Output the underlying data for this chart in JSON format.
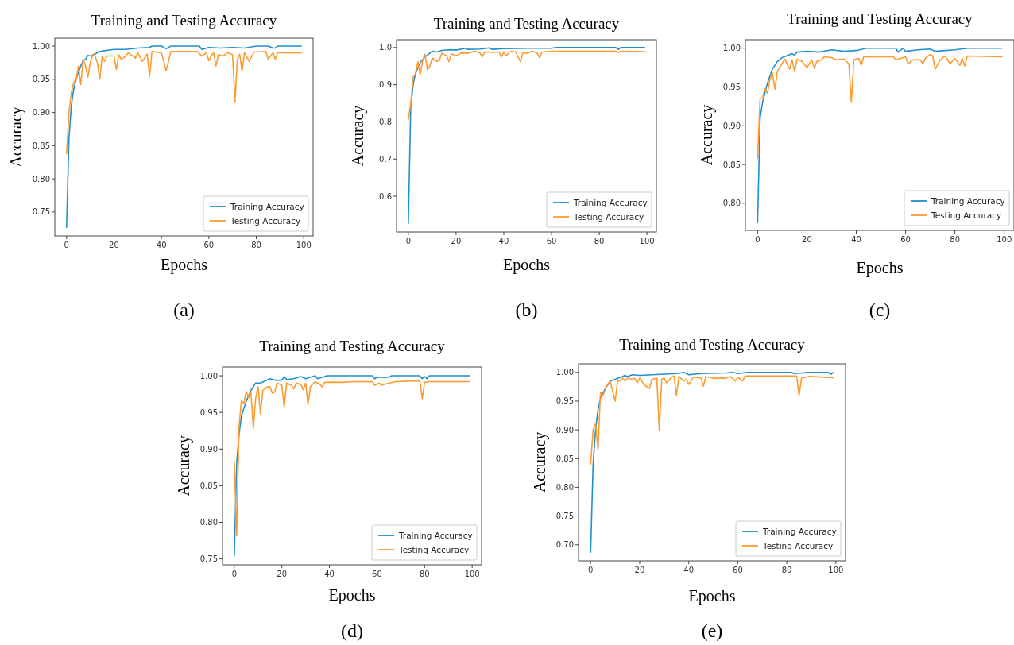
{
  "chart_data": [
    {
      "type": "line",
      "title": "Training and Testing Accuracy",
      "xlabel": "Epochs",
      "ylabel": "Accuracy",
      "annotations": [
        "(a)"
      ],
      "xlim": [
        -4.95,
        103.95
      ],
      "xticks": [
        0,
        20,
        40,
        60,
        80,
        100
      ],
      "ylim": [
        0.714,
        1.012
      ],
      "yticks": [
        {
          "value": 0.75,
          "label": "0.75"
        },
        {
          "value": 0.8,
          "label": "0.80"
        },
        {
          "value": 0.85,
          "label": "0.85"
        },
        {
          "value": 0.9,
          "label": "0.90"
        },
        {
          "value": 0.95,
          "label": "0.95"
        },
        {
          "value": 1.0,
          "label": "1.00"
        }
      ],
      "legend": "bottom right",
      "grid": false,
      "series": [
        {
          "name": "Training Accuracy",
          "color": "#1f8fd0",
          "x": [
            0,
            1,
            2,
            3,
            4,
            5,
            6,
            7,
            8,
            9,
            10,
            12,
            14,
            16,
            18,
            20,
            25,
            30,
            35,
            36,
            40,
            42,
            44,
            56,
            57,
            60,
            65,
            70,
            75,
            80,
            85,
            87,
            88,
            89,
            99
          ],
          "values": [
            0.727,
            0.86,
            0.91,
            0.935,
            0.95,
            0.96,
            0.97,
            0.978,
            0.98,
            0.986,
            0.985,
            0.988,
            0.992,
            0.993,
            0.994,
            0.995,
            0.995,
            0.997,
            0.998,
            1.0,
            1.0,
            0.996,
            1.0,
            1.0,
            0.995,
            0.998,
            0.997,
            0.998,
            0.997,
            1.0,
            1.0,
            0.997,
            0.997,
            1.0,
            1.0
          ]
        },
        {
          "name": "Testing Accuracy",
          "color": "#ff9a2e",
          "x": [
            0,
            1,
            2,
            3,
            4,
            5,
            6,
            7,
            8,
            9,
            10,
            11,
            12,
            13,
            14,
            15,
            16,
            17,
            20,
            21,
            22,
            23,
            25,
            26,
            28,
            29,
            30,
            32,
            34,
            35,
            36,
            40,
            42,
            44,
            55,
            57,
            59,
            60,
            61,
            62,
            63,
            64,
            66,
            68,
            70,
            71,
            72,
            73,
            74,
            75,
            77,
            79,
            84,
            85,
            87,
            88,
            89,
            99
          ],
          "values": [
            0.838,
            0.9,
            0.93,
            0.945,
            0.95,
            0.97,
            0.942,
            0.98,
            0.97,
            0.953,
            0.975,
            0.987,
            0.985,
            0.975,
            0.95,
            0.985,
            0.977,
            0.985,
            0.985,
            0.965,
            0.987,
            0.98,
            0.985,
            0.99,
            0.985,
            0.982,
            0.99,
            0.977,
            0.988,
            0.954,
            0.992,
            0.99,
            0.963,
            0.992,
            0.992,
            0.985,
            0.99,
            0.978,
            0.985,
            0.99,
            0.97,
            0.987,
            0.985,
            0.99,
            0.987,
            0.915,
            0.98,
            0.988,
            0.962,
            0.99,
            0.977,
            0.991,
            0.992,
            0.98,
            0.99,
            0.98,
            0.99,
            0.99
          ]
        }
      ]
    },
    {
      "type": "line",
      "title": "Training and Testing Accuracy",
      "xlabel": "Epochs",
      "ylabel": "Accuracy",
      "annotations": [
        "(b)"
      ],
      "xlim": [
        -4.95,
        103.95
      ],
      "xticks": [
        0,
        20,
        40,
        60,
        80,
        100
      ],
      "ylim": [
        0.504,
        1.021
      ],
      "yticks": [
        0.6,
        0.7,
        0.8,
        0.9,
        {
          "value": 1.0,
          "label": "1.0"
        }
      ],
      "legend": "bottom right",
      "grid": false,
      "series": [
        {
          "name": "Training Accuracy",
          "color": "#1f8fd0",
          "x": [
            0,
            1,
            2,
            3,
            5,
            7,
            9,
            10,
            12,
            14,
            18,
            20,
            24,
            25,
            30,
            34,
            35,
            40,
            50,
            60,
            62,
            87,
            88,
            89,
            99
          ],
          "values": [
            0.527,
            0.84,
            0.9,
            0.93,
            0.96,
            0.975,
            0.985,
            0.99,
            0.988,
            0.992,
            0.994,
            0.993,
            0.998,
            0.995,
            0.996,
            0.999,
            0.995,
            0.997,
            0.998,
            0.998,
            1.0,
            1.0,
            0.995,
            1.0,
            1.0
          ]
        },
        {
          "name": "Testing Accuracy",
          "color": "#ff9a2e",
          "x": [
            0,
            1,
            2,
            3,
            4,
            5,
            6,
            7,
            8,
            9,
            10,
            12,
            13,
            14,
            16,
            17,
            18,
            20,
            22,
            25,
            28,
            30,
            31,
            32,
            35,
            38,
            39,
            40,
            41,
            43,
            45,
            47,
            48,
            50,
            52,
            54,
            55,
            56,
            60,
            87,
            88,
            89,
            99
          ],
          "values": [
            0.806,
            0.85,
            0.92,
            0.93,
            0.962,
            0.926,
            0.965,
            0.982,
            0.94,
            0.95,
            0.972,
            0.963,
            0.965,
            0.985,
            0.978,
            0.962,
            0.983,
            0.978,
            0.985,
            0.985,
            0.99,
            0.985,
            0.975,
            0.988,
            0.987,
            0.988,
            0.975,
            0.988,
            0.978,
            0.99,
            0.988,
            0.962,
            0.986,
            0.985,
            0.99,
            0.985,
            0.972,
            0.988,
            0.99,
            0.99,
            0.986,
            0.99,
            0.989
          ]
        }
      ]
    },
    {
      "type": "line",
      "title": "Training and Testing Accuracy",
      "xlabel": "Epochs",
      "ylabel": "Accuracy",
      "annotations": [
        "(c)"
      ],
      "xlim": [
        -4.95,
        103.95
      ],
      "xticks": [
        0,
        20,
        40,
        60,
        80,
        100
      ],
      "ylim": [
        0.765,
        1.011
      ],
      "yticks": [
        {
          "value": 0.8,
          "label": "0.80"
        },
        {
          "value": 0.85,
          "label": "0.85"
        },
        {
          "value": 0.9,
          "label": "0.90"
        },
        {
          "value": 0.95,
          "label": "0.95"
        },
        {
          "value": 1.0,
          "label": "1.00"
        }
      ],
      "legend": "bottom right",
      "grid": false,
      "series": [
        {
          "name": "Training Accuracy",
          "color": "#1f8fd0",
          "x": [
            0,
            1,
            2,
            4,
            6,
            8,
            10,
            14,
            15,
            16,
            20,
            25,
            30,
            35,
            40,
            44,
            56,
            57,
            59,
            60,
            65,
            70,
            72,
            80,
            85,
            99
          ],
          "values": [
            0.775,
            0.91,
            0.93,
            0.955,
            0.973,
            0.983,
            0.988,
            0.993,
            0.991,
            0.995,
            0.996,
            0.995,
            0.998,
            0.996,
            0.997,
            1.0,
            1.0,
            0.995,
            1.0,
            0.996,
            0.998,
            0.999,
            0.996,
            0.998,
            1.0,
            1.0
          ]
        },
        {
          "name": "Testing Accuracy",
          "color": "#ff9a2e",
          "x": [
            0,
            1,
            2,
            3,
            4,
            5,
            6,
            7,
            8,
            11,
            13,
            14,
            15,
            16,
            18,
            20,
            22,
            23,
            24,
            26,
            27,
            30,
            32,
            35,
            37,
            38,
            39,
            41,
            42,
            43,
            55,
            56,
            60,
            61,
            63,
            66,
            67,
            68,
            70,
            71,
            72,
            74,
            76,
            78,
            80,
            82,
            83,
            84,
            85,
            99
          ],
          "values": [
            0.858,
            0.935,
            0.936,
            0.948,
            0.942,
            0.96,
            0.968,
            0.947,
            0.97,
            0.986,
            0.973,
            0.985,
            0.97,
            0.986,
            0.983,
            0.975,
            0.985,
            0.974,
            0.983,
            0.985,
            0.989,
            0.988,
            0.985,
            0.986,
            0.98,
            0.93,
            0.985,
            0.987,
            0.978,
            0.989,
            0.989,
            0.985,
            0.989,
            0.98,
            0.985,
            0.985,
            0.98,
            0.987,
            0.992,
            0.99,
            0.973,
            0.985,
            0.99,
            0.98,
            0.987,
            0.978,
            0.987,
            0.977,
            0.99,
            0.989
          ]
        }
      ]
    },
    {
      "type": "line",
      "title": "Training and Testing Accuracy",
      "xlabel": "Epochs",
      "ylabel": "Accuracy",
      "annotations": [
        "(d)"
      ],
      "xlim": [
        -4.95,
        103.95
      ],
      "xticks": [
        0,
        20,
        40,
        60,
        80,
        100
      ],
      "ylim": [
        0.742,
        1.012
      ],
      "yticks": [
        {
          "value": 0.75,
          "label": "0.75"
        },
        {
          "value": 0.8,
          "label": "0.80"
        },
        {
          "value": 0.85,
          "label": "0.85"
        },
        {
          "value": 0.9,
          "label": "0.90"
        },
        {
          "value": 0.95,
          "label": "0.95"
        },
        {
          "value": 1.0,
          "label": "1.00"
        }
      ],
      "legend": "bottom right",
      "grid": false,
      "series": [
        {
          "name": "Training Accuracy",
          "color": "#1f8fd0",
          "x": [
            0,
            1,
            2,
            3,
            5,
            7,
            9,
            11,
            13,
            15,
            17,
            20,
            21,
            22,
            25,
            28,
            30,
            34,
            35,
            39,
            58,
            59,
            60,
            65,
            66,
            78,
            79,
            80,
            81,
            82,
            99
          ],
          "values": [
            0.754,
            0.88,
            0.92,
            0.945,
            0.965,
            0.98,
            0.99,
            0.99,
            0.993,
            0.996,
            0.994,
            0.994,
            0.999,
            0.995,
            0.996,
            0.999,
            0.996,
            1.0,
            0.996,
            1.0,
            1.0,
            0.996,
            0.998,
            0.998,
            1.0,
            1.0,
            0.996,
            0.999,
            0.996,
            1.0,
            1.0
          ]
        },
        {
          "name": "Testing Accuracy",
          "color": "#ff9a2e",
          "x": [
            0,
            1,
            2,
            3,
            4,
            5,
            6,
            7,
            8,
            9,
            10,
            11,
            12,
            14,
            15,
            16,
            17,
            18,
            20,
            21,
            22,
            24,
            25,
            26,
            28,
            29,
            30,
            31,
            32,
            34,
            36,
            37,
            38,
            45,
            50,
            58,
            59,
            61,
            62,
            65,
            68,
            78,
            79,
            80,
            82,
            99
          ],
          "values": [
            0.884,
            0.782,
            0.93,
            0.966,
            0.962,
            0.979,
            0.97,
            0.978,
            0.928,
            0.97,
            0.985,
            0.948,
            0.98,
            0.985,
            0.985,
            0.976,
            0.978,
            0.99,
            0.987,
            0.957,
            0.99,
            0.987,
            0.982,
            0.99,
            0.988,
            0.981,
            0.99,
            0.961,
            0.985,
            0.992,
            0.988,
            0.985,
            0.991,
            0.991,
            0.992,
            0.992,
            0.987,
            0.99,
            0.987,
            0.99,
            0.992,
            0.993,
            0.969,
            0.991,
            0.992,
            0.992
          ]
        }
      ]
    },
    {
      "type": "line",
      "title": "Training and Testing Accuracy",
      "xlabel": "Epochs",
      "ylabel": "Accuracy",
      "annotations": [
        "(e)"
      ],
      "xlim": [
        -4.95,
        103.95
      ],
      "xticks": [
        0,
        20,
        40,
        60,
        80,
        100
      ],
      "ylim": [
        0.672,
        1.015
      ],
      "yticks": [
        {
          "value": 0.7,
          "label": "0.70"
        },
        0.75,
        {
          "value": 0.8,
          "label": "0.80"
        },
        0.85,
        {
          "value": 0.9,
          "label": "0.90"
        },
        0.95,
        {
          "value": 1.0,
          "label": "1.00"
        }
      ],
      "legend": "bottom right",
      "grid": false,
      "series": [
        {
          "name": "Training Accuracy",
          "color": "#1f8fd0",
          "x": [
            0,
            1,
            2,
            3,
            4,
            6,
            8,
            10,
            13,
            14,
            15,
            17,
            20,
            25,
            30,
            35,
            38,
            40,
            45,
            55,
            58,
            60,
            64,
            82,
            83,
            89,
            97,
            98,
            99
          ],
          "values": [
            0.687,
            0.84,
            0.9,
            0.935,
            0.955,
            0.972,
            0.985,
            0.988,
            0.993,
            0.995,
            0.993,
            0.996,
            0.995,
            0.996,
            0.997,
            0.998,
            1.0,
            0.996,
            0.998,
            0.999,
            1.0,
            0.998,
            1.0,
            1.0,
            0.998,
            1.0,
            1.0,
            0.997,
            1.0
          ]
        },
        {
          "name": "Testing Accuracy",
          "color": "#ff9a2e",
          "x": [
            0,
            1,
            2,
            3,
            4,
            5,
            6,
            7,
            8,
            10,
            11,
            12,
            13,
            14,
            15,
            17,
            18,
            19,
            20,
            22,
            24,
            25,
            27,
            28,
            29,
            30,
            31,
            33,
            34,
            35,
            36,
            38,
            39,
            40,
            42,
            45,
            46,
            47,
            50,
            55,
            57,
            59,
            60,
            62,
            63,
            84,
            85,
            86,
            89,
            99
          ],
          "values": [
            0.84,
            0.9,
            0.91,
            0.865,
            0.965,
            0.96,
            0.97,
            0.98,
            0.984,
            0.95,
            0.985,
            0.985,
            0.99,
            0.985,
            0.99,
            0.988,
            0.99,
            0.982,
            0.99,
            0.978,
            0.972,
            0.988,
            0.99,
            0.899,
            0.988,
            0.99,
            0.982,
            0.992,
            0.994,
            0.959,
            0.993,
            0.985,
            0.988,
            0.979,
            0.992,
            0.99,
            0.976,
            0.993,
            0.99,
            0.99,
            0.993,
            0.985,
            0.992,
            0.985,
            0.994,
            0.994,
            0.96,
            0.99,
            0.993,
            0.991
          ]
        }
      ]
    }
  ]
}
